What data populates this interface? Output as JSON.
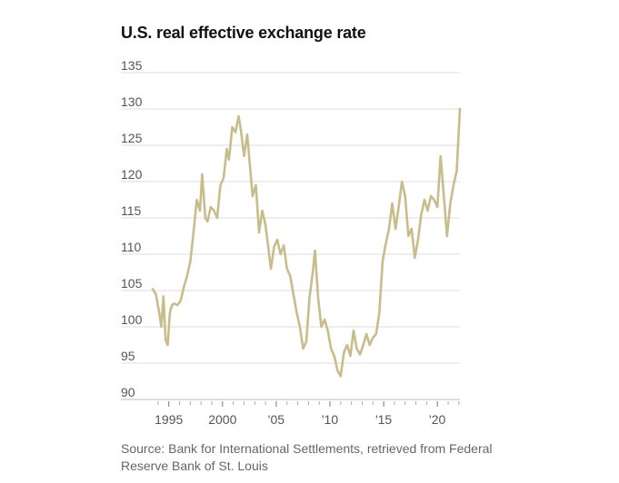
{
  "chart_data": {
    "type": "line",
    "title": "U.S. real effective exchange rate",
    "xlabel": "",
    "ylabel": "",
    "xlim": [
      1994.0,
      2022.6
    ],
    "ylim": [
      90,
      135
    ],
    "yticks": [
      90,
      95,
      100,
      105,
      110,
      115,
      120,
      125,
      130,
      135
    ],
    "xticks": [
      {
        "value": 1995,
        "label": "1995"
      },
      {
        "value": 2000,
        "label": "2000"
      },
      {
        "value": 2005,
        "label": "'05"
      },
      {
        "value": 2010,
        "label": "'10"
      },
      {
        "value": 2015,
        "label": "'15"
      },
      {
        "value": 2020,
        "label": "'20"
      }
    ],
    "grid": true,
    "line_color": "#c8bd8a",
    "series": [
      {
        "x": [
          1994.0,
          1994.3,
          1994.6,
          1994.8,
          1995.0,
          1995.2,
          1995.4,
          1995.6,
          1995.8,
          1996.0,
          1996.3,
          1996.6,
          1996.9,
          1997.2,
          1997.5,
          1997.8,
          1998.1,
          1998.4,
          1998.6,
          1998.9,
          1999.1,
          1999.4,
          1999.7,
          2000.0,
          2000.3,
          2000.6,
          2000.9,
          2001.1,
          2001.4,
          2001.7,
          2002.0,
          2002.2,
          2002.5,
          2002.8,
          2003.0,
          2003.3,
          2003.6,
          2003.9,
          2004.2,
          2004.5,
          2004.8,
          2005.0,
          2005.3,
          2005.6,
          2005.9,
          2006.2,
          2006.5,
          2006.8,
          2007.1,
          2007.4,
          2007.7,
          2008.0,
          2008.3,
          2008.6,
          2008.9,
          2009.1,
          2009.4,
          2009.7,
          2010.0,
          2010.3,
          2010.6,
          2010.9,
          2011.2,
          2011.5,
          2011.8,
          2012.1,
          2012.4,
          2012.7,
          2013.0,
          2013.3,
          2013.6,
          2013.9,
          2014.2,
          2014.5,
          2014.8,
          2015.1,
          2015.4,
          2015.7,
          2016.0,
          2016.3,
          2016.6,
          2016.9,
          2017.2,
          2017.5,
          2017.8,
          2018.1,
          2018.4,
          2018.7,
          2019.0,
          2019.3,
          2019.6,
          2019.9,
          2020.2,
          2020.5,
          2020.8,
          2021.1,
          2021.4,
          2021.7,
          2022.0,
          2022.3,
          2022.6
        ],
        "values": [
          105.2,
          104.5,
          102.0,
          100.0,
          104.2,
          98.2,
          97.5,
          102.0,
          103.0,
          103.2,
          103.0,
          103.6,
          105.5,
          107.0,
          109.0,
          113.0,
          117.5,
          116.0,
          121.0,
          115.0,
          114.5,
          116.5,
          116.0,
          115.0,
          119.5,
          120.5,
          124.5,
          123.0,
          127.5,
          126.8,
          129.0,
          127.2,
          123.5,
          126.5,
          123.0,
          118.0,
          119.5,
          113.0,
          116.0,
          114.0,
          110.5,
          108.0,
          111.0,
          112.0,
          110.0,
          111.2,
          108.0,
          107.0,
          104.5,
          102.0,
          100.0,
          97.0,
          98.0,
          104.0,
          107.5,
          110.5,
          104.0,
          100.0,
          101.0,
          99.5,
          97.0,
          96.0,
          94.0,
          93.2,
          96.5,
          97.5,
          96.0,
          99.5,
          97.0,
          96.2,
          97.5,
          99.0,
          97.5,
          98.5,
          99.0,
          102.0,
          109.0,
          111.5,
          113.5,
          117.0,
          113.5,
          116.5,
          120.0,
          118.0,
          112.5,
          113.5,
          109.5,
          112.0,
          115.5,
          117.5,
          116.0,
          118.0,
          117.5,
          116.5,
          123.5,
          118.0,
          112.5,
          117.0,
          119.5,
          121.5,
          130.0
        ]
      }
    ],
    "source": "Source: Bank for International Settlements, retrieved from Federal Reserve Bank of St. Louis"
  }
}
